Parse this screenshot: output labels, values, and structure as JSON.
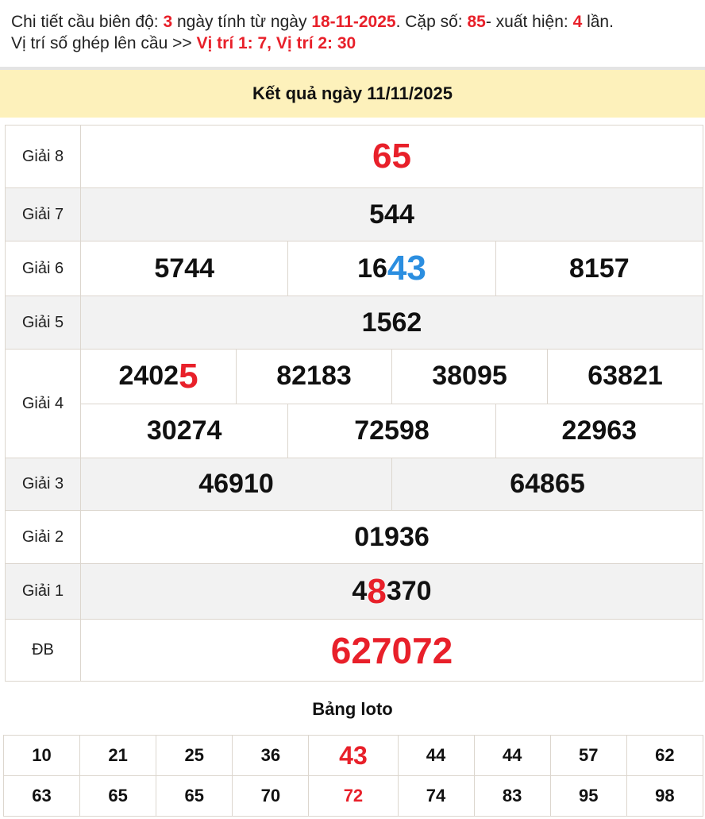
{
  "intro": {
    "t1": "Chi tiết cầu biên độ: ",
    "days": "3",
    "t2": " ngày tính từ ngày ",
    "date": "18-11-2025",
    "t3": ". Cặp số: ",
    "pair": "85",
    "t4": "- xuất hiện: ",
    "count": "4",
    "t5": " lần.",
    "t6": "Vị trí số ghép lên cầu >> ",
    "positions": "Vị trí 1: 7, Vị trí 2: 30"
  },
  "header": {
    "title": "Kết quả ngày 11/11/2025"
  },
  "colors": {
    "red": "#e8202a",
    "blue": "#2b8ee0",
    "header_bg": "#fdf1bb"
  },
  "prizes": [
    {
      "label": "Giải 8",
      "style": "big",
      "lines": [
        [
          {
            "a": "",
            "b": "",
            "c": "65"
          }
        ]
      ]
    },
    {
      "label": "Giải 7",
      "lines": [
        [
          {
            "a": "544",
            "b": "",
            "c": ""
          }
        ]
      ]
    },
    {
      "label": "Giải 6",
      "lines": [
        [
          {
            "a": "5744",
            "b": "",
            "c": ""
          },
          {
            "a": "16",
            "b": "43",
            "c": "",
            "color": "#2b8ee0"
          },
          {
            "a": "8157",
            "b": "",
            "c": ""
          }
        ]
      ]
    },
    {
      "label": "Giải 5",
      "lines": [
        [
          {
            "a": "1562",
            "b": "",
            "c": ""
          }
        ]
      ]
    },
    {
      "label": "Giải 4",
      "lines": [
        [
          {
            "a": "2402",
            "b": "5",
            "c": "",
            "color": "#e8202a"
          },
          {
            "a": "82183",
            "b": "",
            "c": ""
          },
          {
            "a": "38095",
            "b": "",
            "c": ""
          },
          {
            "a": "63821",
            "b": "",
            "c": ""
          }
        ],
        [
          {
            "a": "30274",
            "b": "",
            "c": ""
          },
          {
            "a": "72598",
            "b": "",
            "c": ""
          },
          {
            "a": "22963",
            "b": "",
            "c": ""
          }
        ]
      ]
    },
    {
      "label": "Giải 3",
      "lines": [
        [
          {
            "a": "46910",
            "b": "",
            "c": ""
          },
          {
            "a": "64865",
            "b": "",
            "c": ""
          }
        ]
      ]
    },
    {
      "label": "Giải 2",
      "lines": [
        [
          {
            "a": "01936",
            "b": "",
            "c": ""
          }
        ]
      ]
    },
    {
      "label": "Giải 1",
      "lines": [
        [
          {
            "a": "4",
            "b": "8",
            "c": "370",
            "color": "#e8202a"
          }
        ]
      ]
    },
    {
      "label": "ĐB",
      "style": "db",
      "lines": [
        [
          {
            "a": "",
            "b": "",
            "c": "627072"
          }
        ]
      ]
    }
  ],
  "loto": {
    "title": "Bảng loto",
    "rows": [
      [
        "10",
        "21",
        "25",
        "36",
        "43",
        "44",
        "44",
        "57",
        "62"
      ],
      [
        "63",
        "65",
        "65",
        "70",
        "72",
        "74",
        "83",
        "95",
        "98"
      ]
    ],
    "highlight": {
      "big": "43",
      "red": "72"
    }
  }
}
